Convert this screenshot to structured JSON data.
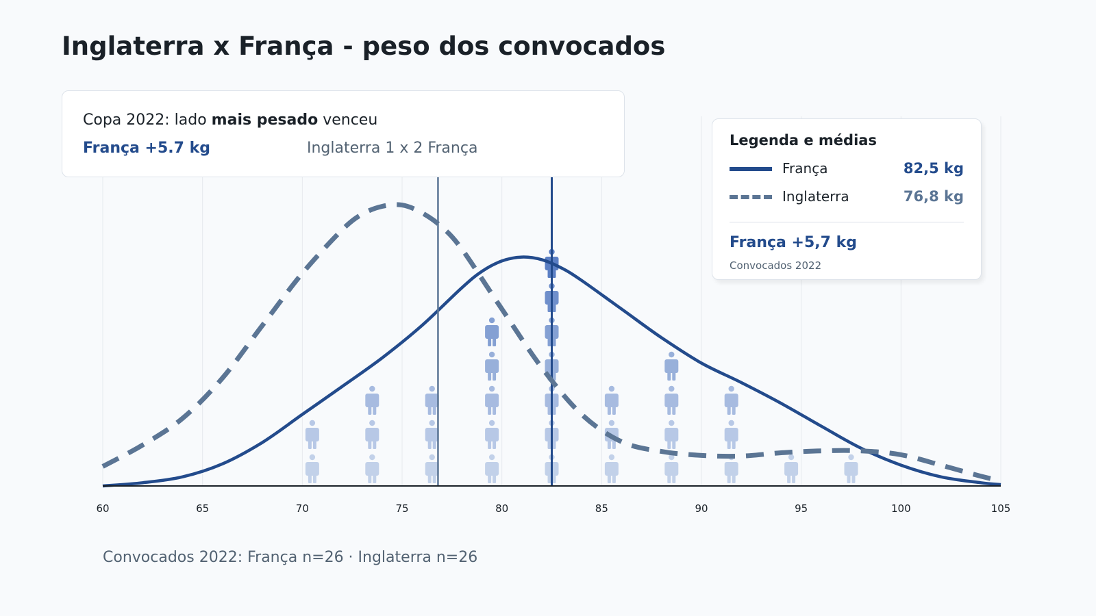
{
  "title": "Inglaterra x França - peso dos convocados",
  "callout": {
    "line1_prefix": "Copa 2022: lado ",
    "line1_bold": "mais pesado",
    "line1_suffix": " venceu",
    "difference": "França +5.7 kg",
    "score": "Inglaterra 1 x 2 França"
  },
  "legend": {
    "title": "Legenda e médias",
    "items": [
      {
        "name": "França",
        "value": "82,5 kg",
        "color": "#234b8c",
        "style": "solid"
      },
      {
        "name": "Inglaterra",
        "value": "76,8 kg",
        "color": "#5b7594",
        "style": "dashed"
      }
    ],
    "difference": "França +5,7 kg",
    "note": "Convocados 2022"
  },
  "footer": "Convocados 2022: França n=26 · Inglaterra n=26",
  "chart_data": {
    "type": "line",
    "xlim": [
      60,
      105
    ],
    "x_ticks": [
      60,
      65,
      70,
      75,
      80,
      85,
      90,
      95,
      100,
      105
    ],
    "grid": "vertical",
    "series": [
      {
        "name": "França",
        "color": "#234b8c",
        "style": "solid",
        "mean": 82.5,
        "x": [
          60,
          62,
          64,
          66,
          68,
          70,
          72,
          74,
          76,
          78,
          79,
          80,
          81,
          82,
          83,
          84,
          86,
          88,
          90,
          92,
          94,
          96,
          98,
          100,
          102,
          104,
          105
        ],
        "y": [
          0.0,
          0.005,
          0.014,
          0.034,
          0.067,
          0.11,
          0.153,
          0.197,
          0.247,
          0.305,
          0.33,
          0.346,
          0.352,
          0.348,
          0.335,
          0.316,
          0.272,
          0.228,
          0.189,
          0.159,
          0.127,
          0.092,
          0.058,
          0.032,
          0.014,
          0.005,
          0.002
        ]
      },
      {
        "name": "Inglaterra",
        "color": "#5b7594",
        "style": "dashed",
        "mean": 76.8,
        "x": [
          60,
          62,
          64,
          66,
          68,
          70,
          72,
          73,
          74,
          75,
          76,
          77,
          78,
          80,
          82,
          84,
          86,
          88,
          90,
          92,
          94,
          96,
          98,
          100,
          102,
          104,
          105
        ],
        "y": [
          0.03,
          0.063,
          0.104,
          0.166,
          0.247,
          0.327,
          0.394,
          0.418,
          0.43,
          0.432,
          0.42,
          0.398,
          0.364,
          0.272,
          0.182,
          0.11,
          0.068,
          0.053,
          0.047,
          0.046,
          0.051,
          0.054,
          0.054,
          0.048,
          0.032,
          0.015,
          0.008
        ]
      }
    ],
    "pictograph": {
      "bin_centers": [
        70.5,
        73.5,
        76.5,
        79.5,
        82.5,
        85.5,
        88.5,
        91.5,
        94.5,
        97.5
      ],
      "counts": [
        2,
        3,
        3,
        5,
        7,
        3,
        4,
        3,
        1,
        1
      ]
    }
  }
}
